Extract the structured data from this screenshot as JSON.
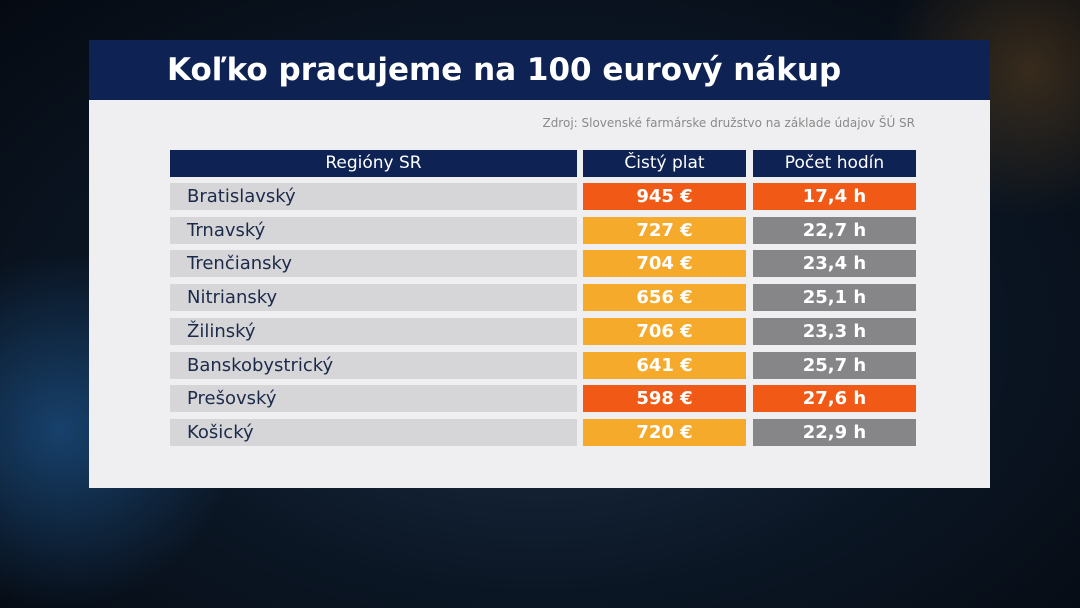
{
  "header": {
    "title": "Koľko pracujeme na 100 eurový nákup",
    "source": "Zdroj: Slovenské farmárske družstvo na základe údajov ŠÚ SR"
  },
  "table": {
    "columns": [
      "Regióny SR",
      "Čistý plat",
      "Počet hodín"
    ],
    "rows": [
      {
        "region": "Bratislavský",
        "salary": "945 €",
        "hours": "17,4 h",
        "accent": true
      },
      {
        "region": "Trnavský",
        "salary": "727 €",
        "hours": "22,7 h",
        "accent": false
      },
      {
        "region": "Trenčiansky",
        "salary": "704 €",
        "hours": "23,4 h",
        "accent": false
      },
      {
        "region": "Nitriansky",
        "salary": "656 €",
        "hours": "25,1 h",
        "accent": false
      },
      {
        "region": "Žilinský",
        "salary": "706 €",
        "hours": "23,3 h",
        "accent": false
      },
      {
        "region": "Banskobystrický",
        "salary": "641 €",
        "hours": "25,7 h",
        "accent": false
      },
      {
        "region": "Prešovský",
        "salary": "598 €",
        "hours": "27,6 h",
        "accent": true
      },
      {
        "region": "Košický",
        "salary": "720 €",
        "hours": "22,9 h",
        "accent": false
      }
    ]
  }
}
